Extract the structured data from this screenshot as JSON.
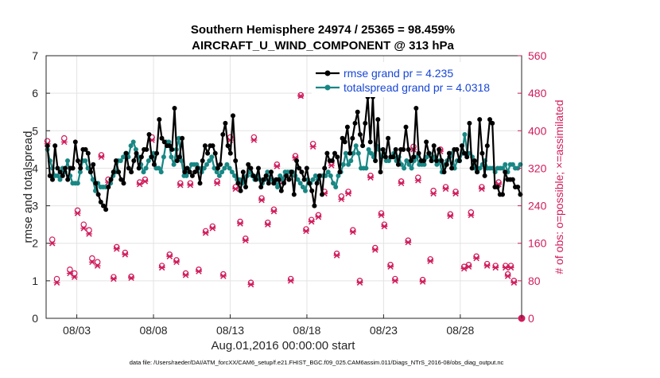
{
  "chart_data": {
    "type": "line",
    "title_line1": "Southern Hemisphere 24974 / 25365 = 98.459%",
    "title_line2": "AIRCRAFT_U_WIND_COMPONENT @ 313 hPa",
    "xlabel": "Aug.01,2016 00:00:00 start",
    "ylabel": "rmse and totalspread",
    "ylabel_right": "# of obs: o=possible; ×=assimilated",
    "footnote": "data file: /Users/raeder/DAI/ATM_forcXX/CAM6_setup/f.e21.FHIST_BGC.f09_025.CAM6assim.011/Diags_NTrS_2016-08/obs_diag_output.nc",
    "x_start_day": 1,
    "x_end_day": 32,
    "xlim": [
      1,
      32
    ],
    "x_ticks": [
      3,
      8,
      13,
      18,
      23,
      28
    ],
    "x_tick_labels": [
      "08/03",
      "08/08",
      "08/13",
      "08/18",
      "08/23",
      "08/28"
    ],
    "ylim": [
      0,
      7
    ],
    "y_ticks": [
      0,
      1,
      2,
      3,
      4,
      5,
      6,
      7
    ],
    "y_tick_labels": [
      "0",
      "1",
      "2",
      "3",
      "4",
      "5",
      "6",
      "7"
    ],
    "ylim_right": [
      0,
      560
    ],
    "y_ticks_right": [
      0,
      80,
      160,
      240,
      320,
      400,
      480,
      560
    ],
    "y_tick_labels_right": [
      "0",
      "80",
      "160",
      "240",
      "320",
      "400",
      "480",
      "560"
    ],
    "grid": true,
    "legend_position": "top-right",
    "series": [
      {
        "name": "rmse grand pr = 4.235",
        "color": "#000000",
        "values": [
          4.6,
          3.8,
          3.7,
          4.6,
          4.0,
          3.9,
          3.8,
          4.0,
          3.7,
          4.0,
          4.0,
          4.7,
          4.2,
          4.0,
          4.5,
          4.5,
          4.4,
          3.9,
          4.1,
          3.6,
          3.3,
          3.1,
          3.0,
          2.9,
          3.5,
          3.7,
          3.9,
          4.2,
          3.9,
          3.7,
          3.6,
          4.4,
          4.0,
          3.9,
          4.2,
          4.4,
          4.0,
          4.3,
          4.5,
          4.5,
          4.9,
          4.3,
          4.1,
          4.4,
          5.3,
          4.8,
          4.7,
          4.6,
          4.6,
          4.5,
          5.6,
          4.2,
          4.3,
          4.8,
          3.9,
          4.0,
          3.9,
          3.8,
          3.9,
          4.0,
          3.6,
          4.2,
          4.6,
          4.4,
          4.6,
          4.6,
          4.4,
          4.0,
          4.1,
          4.9,
          5.2,
          4.6,
          4.4,
          5.4,
          4.2,
          3.6,
          3.4,
          3.9,
          3.5,
          4.1,
          4.0,
          3.8,
          3.7,
          4.0,
          3.5,
          3.7,
          3.8,
          3.6,
          3.9,
          3.6,
          3.7,
          3.7,
          3.4,
          3.6,
          3.8,
          3.7,
          3.9,
          3.3,
          4.2,
          4.0,
          3.9,
          3.7,
          4.0,
          3.6,
          3.4,
          3.0,
          3.6,
          3.8,
          3.3,
          4.0,
          4.4,
          4.2,
          4.2,
          4.4,
          4.3,
          3.9,
          4.8,
          4.7,
          5.1,
          4.4,
          4.8,
          5.2,
          5.5,
          4.9,
          4.6,
          5.2,
          5.9,
          4.7,
          5.9,
          4.2,
          5.3,
          3.9,
          4.5,
          4.3,
          4.8,
          4.3,
          4.3,
          4.5,
          4.1,
          4.5,
          4.5,
          5.1,
          4.5,
          4.2,
          4.3,
          5.6,
          4.4,
          4.2,
          4.2,
          4.7,
          4.4,
          4.2,
          4.6,
          4.2,
          4.5,
          4.2,
          3.9,
          4.1,
          4.4,
          4.0,
          4.5,
          4.5,
          4.2,
          4.6,
          4.4,
          4.3,
          5.2,
          4.0,
          4.2,
          3.9,
          5.3,
          4.4,
          3.8,
          4.6,
          5.3,
          5.2,
          3.5,
          3.5,
          3.3,
          3.3,
          3.9,
          3.7,
          3.7,
          3.7,
          3.5,
          3.5,
          3.3
        ]
      },
      {
        "name": "totalspread grand pr = 4.0318",
        "color": "#188784",
        "values": [
          4.5,
          4.2,
          4.0,
          3.8,
          3.8,
          3.7,
          4.0,
          3.9,
          4.2,
          3.8,
          3.6,
          3.6,
          3.6,
          3.9,
          4.2,
          4.2,
          4.0,
          3.9,
          3.7,
          3.4,
          3.6,
          3.5,
          3.5,
          3.5,
          3.5,
          3.6,
          3.8,
          3.9,
          4.2,
          4.2,
          4.3,
          4.4,
          4.3,
          4.6,
          4.7,
          4.5,
          4.3,
          4.1,
          3.9,
          4.0,
          4.2,
          4.3,
          4.4,
          4.0,
          4.0,
          3.9,
          4.3,
          4.7,
          4.7,
          4.3,
          4.1,
          4.5,
          4.8,
          4.2,
          3.8,
          3.8,
          3.9,
          4.1,
          4.1,
          4.1,
          4.0,
          3.9,
          4.0,
          4.1,
          4.2,
          4.3,
          4.0,
          3.9,
          3.8,
          3.9,
          4.0,
          4.1,
          4.0,
          3.9,
          3.8,
          3.7,
          3.7,
          3.6,
          3.7,
          3.8,
          3.9,
          3.8,
          3.7,
          3.8,
          3.7,
          3.6,
          3.7,
          3.9,
          3.7,
          3.7,
          3.6,
          3.5,
          3.8,
          3.7,
          3.9,
          3.9,
          3.9,
          3.9,
          3.8,
          3.7,
          3.6,
          3.5,
          3.4,
          3.7,
          3.6,
          3.7,
          3.8,
          3.7,
          3.8,
          3.8,
          3.8,
          3.9,
          3.8,
          3.6,
          3.5,
          3.8,
          3.9,
          4.1,
          4.4,
          4.1,
          4.2,
          4.4,
          4.6,
          4.4,
          4.0,
          4.0,
          4.0,
          4.5,
          4.4,
          4.3,
          4.6,
          4.5,
          4.3,
          4.4,
          4.2,
          4.2,
          4.3,
          4.4,
          4.2,
          4.3,
          4.1,
          4.0,
          4.2,
          4.1,
          4.0,
          4.2,
          4.3,
          4.1,
          4.1,
          4.1,
          4.3,
          4.4,
          4.2,
          4.3,
          4.1,
          4.2,
          3.9,
          4.1,
          4.2,
          4.3,
          4.4,
          4.0,
          4.2,
          4.2,
          4.4,
          4.9,
          4.4,
          4.4,
          4.3,
          4.0,
          3.9,
          4.0,
          4.1,
          4.2,
          4.0,
          4.0,
          4.0,
          3.9,
          4.0,
          4.0,
          4.0,
          4.1,
          3.9,
          4.1,
          4.1,
          4.0,
          4.0,
          4.1
        ]
      }
    ],
    "obs_possible": [
      [
        1.08,
        378
      ],
      [
        1.4,
        168
      ],
      [
        1.7,
        84
      ],
      [
        2.18,
        384
      ],
      [
        2.55,
        104
      ],
      [
        2.85,
        96
      ],
      [
        3.05,
        230
      ],
      [
        3.45,
        200
      ],
      [
        3.8,
        188
      ],
      [
        4.0,
        128
      ],
      [
        4.35,
        120
      ],
      [
        4.6,
        348
      ],
      [
        5.05,
        296
      ],
      [
        5.4,
        88
      ],
      [
        5.6,
        152
      ],
      [
        6.15,
        140
      ],
      [
        6.55,
        89
      ],
      [
        7.1,
        290
      ],
      [
        7.45,
        296
      ],
      [
        7.9,
        386
      ],
      [
        8.55,
        112
      ],
      [
        9.05,
        136
      ],
      [
        9.5,
        124
      ],
      [
        9.75,
        288
      ],
      [
        10.1,
        96
      ],
      [
        10.4,
        288
      ],
      [
        10.95,
        104
      ],
      [
        11.4,
        186
      ],
      [
        11.85,
        196
      ],
      [
        12.15,
        292
      ],
      [
        12.55,
        94
      ],
      [
        13.0,
        386
      ],
      [
        13.35,
        280
      ],
      [
        13.65,
        206
      ],
      [
        14.0,
        170
      ],
      [
        14.35,
        76
      ],
      [
        14.55,
        386
      ],
      [
        15.05,
        256
      ],
      [
        15.45,
        204
      ],
      [
        15.85,
        232
      ],
      [
        16.05,
        328
      ],
      [
        16.45,
        296
      ],
      [
        16.95,
        84
      ],
      [
        17.25,
        346
      ],
      [
        17.6,
        476
      ],
      [
        17.95,
        190
      ],
      [
        18.3,
        210
      ],
      [
        18.4,
        372
      ],
      [
        18.75,
        220
      ],
      [
        19.15,
        270
      ],
      [
        19.6,
        332
      ],
      [
        19.95,
        138
      ],
      [
        20.25,
        260
      ],
      [
        20.7,
        270
      ],
      [
        21.0,
        188
      ],
      [
        21.45,
        80
      ],
      [
        22.15,
        304
      ],
      [
        22.45,
        150
      ],
      [
        22.85,
        224
      ],
      [
        23.05,
        200
      ],
      [
        23.45,
        114
      ],
      [
        23.75,
        84
      ],
      [
        24.15,
        292
      ],
      [
        24.6,
        166
      ],
      [
        24.95,
        366
      ],
      [
        25.25,
        300
      ],
      [
        25.55,
        82
      ],
      [
        26.05,
        126
      ],
      [
        26.25,
        272
      ],
      [
        26.7,
        360
      ],
      [
        27.05,
        280
      ],
      [
        27.35,
        222
      ],
      [
        27.7,
        270
      ],
      [
        28.25,
        110
      ],
      [
        28.55,
        114
      ],
      [
        28.7,
        226
      ],
      [
        29.05,
        132
      ],
      [
        29.4,
        280
      ],
      [
        29.75,
        116
      ],
      [
        30.3,
        112
      ],
      [
        30.5,
        290
      ],
      [
        30.95,
        112
      ],
      [
        31.1,
        94
      ],
      [
        31.3,
        112
      ],
      [
        31.5,
        80
      ]
    ],
    "obs_assimilated": [
      [
        1.08,
        372
      ],
      [
        1.4,
        160
      ],
      [
        1.7,
        76
      ],
      [
        2.18,
        376
      ],
      [
        2.55,
        96
      ],
      [
        2.85,
        88
      ],
      [
        3.05,
        224
      ],
      [
        3.45,
        192
      ],
      [
        3.8,
        180
      ],
      [
        4.0,
        120
      ],
      [
        4.35,
        112
      ],
      [
        4.6,
        344
      ],
      [
        5.05,
        290
      ],
      [
        5.4,
        84
      ],
      [
        5.6,
        148
      ],
      [
        6.15,
        136
      ],
      [
        6.55,
        86
      ],
      [
        7.1,
        286
      ],
      [
        7.45,
        292
      ],
      [
        7.9,
        380
      ],
      [
        8.55,
        108
      ],
      [
        9.05,
        132
      ],
      [
        9.5,
        120
      ],
      [
        9.75,
        284
      ],
      [
        10.1,
        92
      ],
      [
        10.4,
        284
      ],
      [
        10.95,
        100
      ],
      [
        11.4,
        182
      ],
      [
        11.85,
        192
      ],
      [
        12.15,
        288
      ],
      [
        12.55,
        90
      ],
      [
        13.0,
        380
      ],
      [
        13.35,
        276
      ],
      [
        13.65,
        202
      ],
      [
        14.0,
        166
      ],
      [
        14.35,
        72
      ],
      [
        14.55,
        380
      ],
      [
        15.05,
        252
      ],
      [
        15.45,
        200
      ],
      [
        15.85,
        228
      ],
      [
        16.05,
        324
      ],
      [
        16.45,
        292
      ],
      [
        16.95,
        80
      ],
      [
        17.25,
        342
      ],
      [
        17.6,
        474
      ],
      [
        17.95,
        186
      ],
      [
        18.3,
        206
      ],
      [
        18.4,
        366
      ],
      [
        18.75,
        216
      ],
      [
        19.15,
        266
      ],
      [
        19.6,
        326
      ],
      [
        19.95,
        134
      ],
      [
        20.25,
        254
      ],
      [
        20.7,
        266
      ],
      [
        21.0,
        184
      ],
      [
        21.45,
        76
      ],
      [
        22.15,
        300
      ],
      [
        22.45,
        146
      ],
      [
        22.85,
        220
      ],
      [
        23.05,
        196
      ],
      [
        23.45,
        110
      ],
      [
        23.75,
        80
      ],
      [
        24.15,
        288
      ],
      [
        24.6,
        162
      ],
      [
        24.95,
        360
      ],
      [
        25.25,
        294
      ],
      [
        25.55,
        78
      ],
      [
        26.05,
        122
      ],
      [
        26.25,
        266
      ],
      [
        26.7,
        356
      ],
      [
        27.05,
        276
      ],
      [
        27.35,
        218
      ],
      [
        27.7,
        266
      ],
      [
        28.25,
        106
      ],
      [
        28.55,
        110
      ],
      [
        28.7,
        220
      ],
      [
        29.05,
        128
      ],
      [
        29.4,
        276
      ],
      [
        29.75,
        112
      ],
      [
        30.3,
        108
      ],
      [
        30.5,
        286
      ],
      [
        30.95,
        108
      ],
      [
        31.1,
        90
      ],
      [
        31.3,
        108
      ],
      [
        31.5,
        76
      ]
    ],
    "obs_end_marker": [
      [
        32.0,
        0
      ]
    ]
  }
}
